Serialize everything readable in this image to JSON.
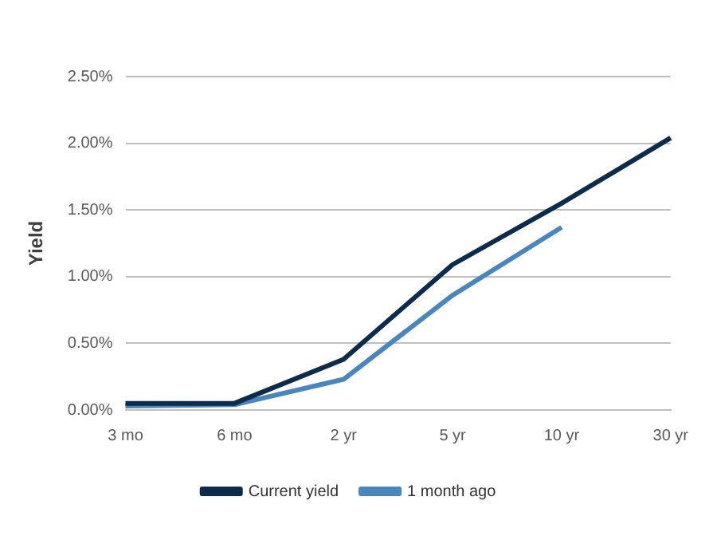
{
  "chart_data": {
    "type": "line",
    "ylabel": "Yield",
    "categories": [
      "3 mo",
      "6 mo",
      "2 yr",
      "5 yr",
      "10 yr",
      "30 yr"
    ],
    "series": [
      {
        "name": "Current yield",
        "color": "#0d2b4c",
        "values": [
          0.05,
          0.05,
          0.38,
          1.09,
          1.55,
          2.04
        ]
      },
      {
        "name": "1 month ago",
        "color": "#4a86bd",
        "values": [
          0.03,
          0.04,
          0.23,
          0.86,
          1.37,
          null
        ]
      }
    ],
    "ylim": [
      0,
      2.5
    ],
    "yticks": [
      {
        "value": 0,
        "label": "0.00%"
      },
      {
        "value": 0.5,
        "label": "0.50%"
      },
      {
        "value": 1,
        "label": "1.00%"
      },
      {
        "value": 1.5,
        "label": "1.50%"
      },
      {
        "value": 2,
        "label": "2.00%"
      },
      {
        "value": 2.5,
        "label": "2.50%"
      }
    ],
    "grid": "y",
    "legend": "bottom",
    "marker": "none",
    "line_style": "solid"
  }
}
